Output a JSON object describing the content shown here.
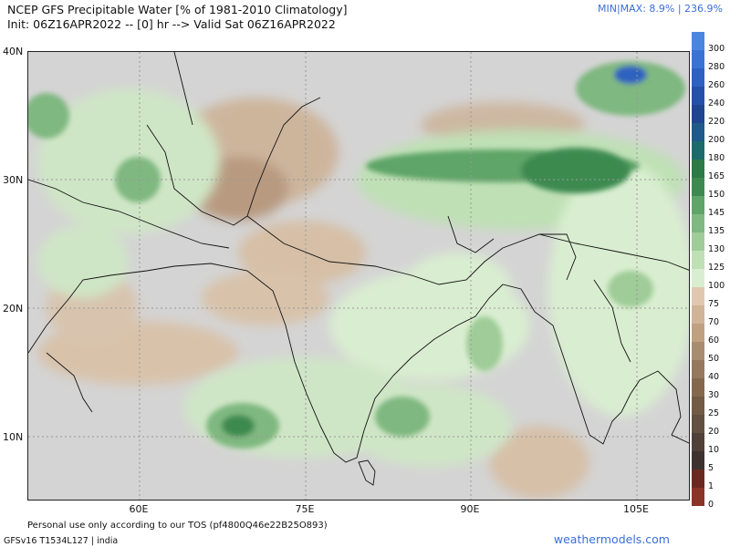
{
  "header": {
    "title_line1": "NCEP GFS Precipitable Water [% of 1981-2010 Climatology]",
    "title_line2": "Init: 06Z16APR2022 -- [0] hr --> Valid Sat 06Z16APR2022",
    "minmax": "MIN|MAX: 8.9% | 236.9%"
  },
  "map": {
    "lat_labels": [
      "40N",
      "30N",
      "20N",
      "10N"
    ],
    "lon_labels": [
      "60E",
      "75E",
      "90E",
      "105E"
    ]
  },
  "colorbar": {
    "labels": [
      "300",
      "280",
      "260",
      "240",
      "220",
      "200",
      "180",
      "165",
      "150",
      "145",
      "135",
      "130",
      "125",
      "100",
      "75",
      "70",
      "60",
      "50",
      "40",
      "30",
      "25",
      "20",
      "10",
      "5",
      "1",
      "0"
    ],
    "colors": [
      "#4a86e0",
      "#3a74d2",
      "#2d62c0",
      "#2550a8",
      "#1f4590",
      "#1e5a8a",
      "#1c6b6a",
      "#2c7a45",
      "#3d8a50",
      "#5fa468",
      "#7fb880",
      "#9fcc98",
      "#bfe0b5",
      "#d9eed0",
      "#e0c8b0",
      "#d0b498",
      "#bfa080",
      "#a88c70",
      "#96785c",
      "#84684e",
      "#725a44",
      "#625040",
      "#504038",
      "#3e3230",
      "#6a2a22",
      "#8a3428"
    ]
  },
  "footer": {
    "tos": "Personal use only according to our TOS (pf4800Q46e22B25O893)",
    "model": "GFSv16 T1534L127 | india",
    "brand": "weathermodels.com"
  }
}
